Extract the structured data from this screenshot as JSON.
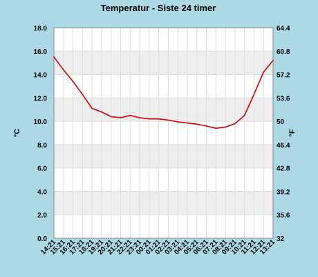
{
  "chart_data": {
    "type": "line",
    "title": "Temperatur - Siste 24 timer",
    "ylabel_left": "°C",
    "ylabel_right": "°F",
    "ylim": [
      0,
      18
    ],
    "ylim_right": [
      32,
      64.4
    ],
    "y_ticks_left": [
      "0.0",
      "2.0",
      "4.0",
      "6.0",
      "8.0",
      "10.0",
      "12.0",
      "14.0",
      "16.0",
      "18.0"
    ],
    "y_ticks_right": [
      "32",
      "35.6",
      "39.2",
      "42.8",
      "46.4",
      "50",
      "53.6",
      "57.2",
      "60.8",
      "64.4"
    ],
    "categories": [
      "14:21",
      "15:21",
      "16:21",
      "17:21",
      "18:21",
      "19:21",
      "20:21",
      "21:21",
      "22:21",
      "23:21",
      "00:21",
      "01:21",
      "02:21",
      "03:21",
      "04:21",
      "05:21",
      "06:21",
      "07:21",
      "08:21",
      "09:21",
      "10:21",
      "11:21",
      "12:21",
      "13:21"
    ],
    "series": [
      {
        "color": "#cc0000",
        "values": [
          15.5,
          14.4,
          13.4,
          12.3,
          11.1,
          10.8,
          10.4,
          10.3,
          10.5,
          10.3,
          10.2,
          10.2,
          10.1,
          9.95,
          9.85,
          9.75,
          9.6,
          9.4,
          9.5,
          9.8,
          10.5,
          12.3,
          14.2,
          15.2
        ]
      }
    ],
    "grid": true,
    "band_colors": [
      "#ffffff",
      "#eeeeee"
    ],
    "line_color": "#cc0000",
    "background": "#add8e6"
  }
}
